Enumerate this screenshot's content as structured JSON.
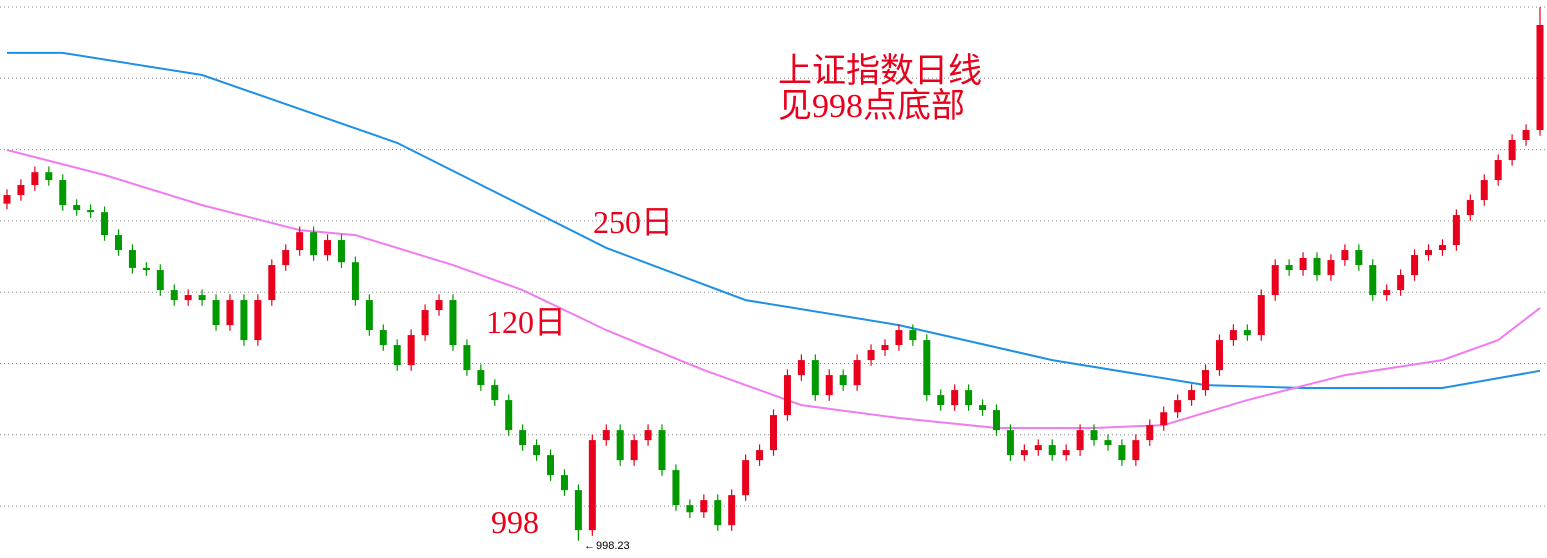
{
  "chart_data": {
    "type": "candlestick",
    "annotations": {
      "title": "上证指数日线",
      "subtitle": "见998点底部",
      "ma250": "250日",
      "ma120": "120日",
      "bottom": "998"
    },
    "ylim": [
      974,
      1755
    ],
    "up_color": "#e8001c",
    "down_color": "#009900",
    "open": [
      1470,
      1482,
      1496,
      1514,
      1503,
      1468,
      1461,
      1458,
      1426,
      1405,
      1380,
      1377,
      1349,
      1335,
      1342,
      1335,
      1300,
      1335,
      1279,
      1335,
      1384,
      1405,
      1430,
      1398,
      1419,
      1388,
      1335,
      1293,
      1272,
      1244,
      1286,
      1321,
      1335,
      1272,
      1237,
      1216,
      1195,
      1153,
      1132,
      1118,
      1090,
      1069,
      1013,
      1139,
      1153,
      1111,
      1139,
      1153,
      1097,
      1048,
      1038,
      1055,
      1020,
      1062,
      1111,
      1125,
      1174,
      1230,
      1251,
      1202,
      1230,
      1216,
      1251,
      1265,
      1272,
      1293,
      1279,
      1202,
      1188,
      1209,
      1188,
      1181,
      1153,
      1118,
      1125,
      1132,
      1118,
      1125,
      1153,
      1139,
      1132,
      1111,
      1139,
      1160,
      1178,
      1195,
      1209,
      1237,
      1279,
      1293,
      1286,
      1342,
      1384,
      1377,
      1394,
      1370,
      1391,
      1405,
      1384,
      1342,
      1349,
      1370,
      1398,
      1405,
      1412,
      1454,
      1475,
      1503,
      1531,
      1559,
      1573
    ],
    "high": [
      1490,
      1504,
      1522,
      1522,
      1511,
      1476,
      1469,
      1466,
      1434,
      1413,
      1388,
      1385,
      1357,
      1350,
      1350,
      1343,
      1343,
      1343,
      1343,
      1392,
      1413,
      1438,
      1438,
      1427,
      1427,
      1396,
      1343,
      1301,
      1280,
      1294,
      1329,
      1343,
      1343,
      1280,
      1245,
      1224,
      1203,
      1161,
      1140,
      1126,
      1098,
      1077,
      1147,
      1161,
      1161,
      1147,
      1161,
      1161,
      1105,
      1056,
      1063,
      1063,
      1070,
      1119,
      1133,
      1182,
      1238,
      1259,
      1259,
      1238,
      1238,
      1259,
      1273,
      1280,
      1301,
      1301,
      1287,
      1210,
      1217,
      1217,
      1196,
      1189,
      1161,
      1133,
      1140,
      1140,
      1133,
      1161,
      1161,
      1147,
      1140,
      1147,
      1168,
      1186,
      1203,
      1217,
      1245,
      1287,
      1301,
      1301,
      1350,
      1392,
      1392,
      1402,
      1402,
      1399,
      1413,
      1413,
      1392,
      1357,
      1378,
      1406,
      1413,
      1420,
      1462,
      1483,
      1511,
      1539,
      1567,
      1581,
      1745
    ],
    "low": [
      1462,
      1474,
      1488,
      1495,
      1460,
      1453,
      1450,
      1418,
      1397,
      1372,
      1369,
      1341,
      1327,
      1327,
      1327,
      1292,
      1292,
      1271,
      1271,
      1327,
      1376,
      1397,
      1390,
      1390,
      1380,
      1327,
      1285,
      1264,
      1236,
      1236,
      1278,
      1313,
      1264,
      1229,
      1208,
      1187,
      1145,
      1124,
      1110,
      1082,
      1061,
      998.23,
      1005,
      1131,
      1103,
      1103,
      1131,
      1089,
      1040,
      1030,
      1030,
      1012,
      1012,
      1054,
      1103,
      1117,
      1166,
      1222,
      1194,
      1194,
      1208,
      1208,
      1243,
      1257,
      1264,
      1271,
      1194,
      1180,
      1180,
      1180,
      1173,
      1145,
      1110,
      1110,
      1117,
      1110,
      1110,
      1117,
      1131,
      1124,
      1103,
      1103,
      1131,
      1152,
      1170,
      1187,
      1201,
      1229,
      1271,
      1278,
      1278,
      1334,
      1369,
      1369,
      1362,
      1362,
      1383,
      1376,
      1334,
      1334,
      1341,
      1362,
      1390,
      1397,
      1404,
      1446,
      1467,
      1495,
      1523,
      1551,
      1565
    ],
    "close": [
      1482,
      1496,
      1514,
      1503,
      1468,
      1461,
      1458,
      1426,
      1405,
      1380,
      1377,
      1349,
      1335,
      1342,
      1335,
      1300,
      1335,
      1279,
      1335,
      1384,
      1405,
      1430,
      1398,
      1419,
      1388,
      1335,
      1293,
      1272,
      1244,
      1286,
      1321,
      1335,
      1272,
      1237,
      1216,
      1195,
      1153,
      1132,
      1118,
      1090,
      1069,
      1013,
      1139,
      1153,
      1111,
      1139,
      1153,
      1097,
      1048,
      1038,
      1055,
      1020,
      1062,
      1111,
      1125,
      1174,
      1230,
      1251,
      1202,
      1230,
      1216,
      1251,
      1265,
      1272,
      1293,
      1279,
      1202,
      1188,
      1209,
      1188,
      1181,
      1153,
      1118,
      1125,
      1132,
      1118,
      1125,
      1153,
      1139,
      1132,
      1111,
      1139,
      1160,
      1178,
      1195,
      1209,
      1237,
      1279,
      1293,
      1286,
      1342,
      1384,
      1377,
      1394,
      1370,
      1391,
      1405,
      1384,
      1342,
      1349,
      1370,
      1398,
      1405,
      1412,
      1454,
      1475,
      1503,
      1531,
      1559,
      1573,
      1720
    ],
    "lines": [
      {
        "color": "#1e90e6",
        "x": [
          0,
          4,
          14,
          28,
          43,
          53,
          64,
          75,
          86,
          93,
          103,
          110
        ],
        "values": [
          1681,
          1681,
          1650,
          1555,
          1408,
          1335,
          1300,
          1251,
          1216,
          1212,
          1212,
          1236
        ]
      },
      {
        "color": "#f07cf0",
        "x": [
          0,
          7,
          14,
          21,
          25,
          32,
          37,
          43,
          50,
          57,
          64,
          71,
          78,
          83,
          89,
          96,
          103,
          107,
          110
        ],
        "values": [
          1545,
          1510,
          1468,
          1433,
          1426,
          1384,
          1349,
          1293,
          1237,
          1188,
          1170,
          1156,
          1156,
          1160,
          1195,
          1230,
          1251,
          1279,
          1324
        ]
      }
    ]
  }
}
